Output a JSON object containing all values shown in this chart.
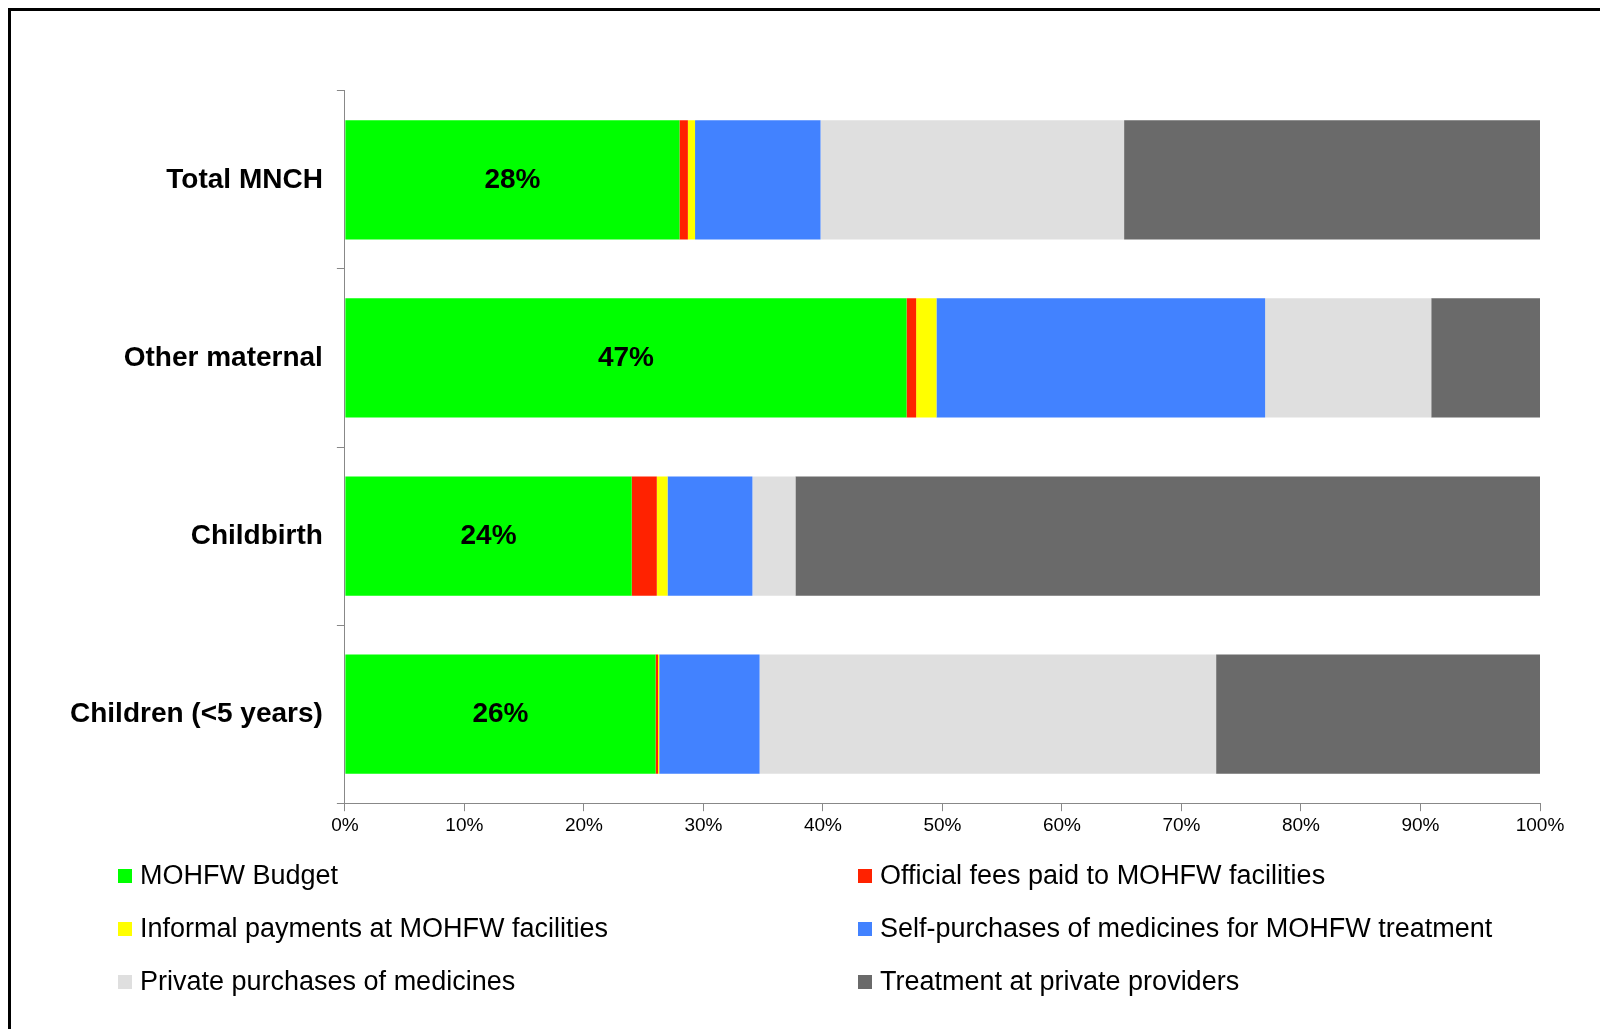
{
  "chart_data": {
    "type": "bar",
    "orientation": "horizontal",
    "stacked": true,
    "categories": [
      "Total MNCH",
      "Other maternal",
      "Childbirth",
      "Children (<5 years)"
    ],
    "series": [
      {
        "name": "MOHFW Budget",
        "color": "#00ff00",
        "values": [
          28,
          47,
          24,
          26
        ],
        "value_labels": [
          "28%",
          "47%",
          "24%",
          "26%"
        ]
      },
      {
        "name": "Official fees paid to MOHFW facilities",
        "color": "#ff2200",
        "values": [
          0.7,
          0.8,
          2.1,
          0.2
        ]
      },
      {
        "name": "Informal payments at MOHFW facilities",
        "color": "#ffff00",
        "values": [
          0.6,
          1.7,
          0.9,
          0.1
        ]
      },
      {
        "name": "Self-purchases of medicines for MOHFW treatment",
        "color": "#4282ff",
        "values": [
          10.5,
          27.5,
          7.1,
          8.4
        ]
      },
      {
        "name": "Private purchases of medicines",
        "color": "#dfdfdf",
        "values": [
          25.4,
          13.9,
          3.6,
          38.2
        ]
      },
      {
        "name": "Treatment at private providers",
        "color": "#6a6a6a",
        "values": [
          34.8,
          9.1,
          62.3,
          27.1
        ]
      }
    ],
    "xlim": [
      0,
      100
    ],
    "xticks": [
      {
        "value": 0,
        "label": "0%"
      },
      {
        "value": 10,
        "label": "10%"
      },
      {
        "value": 20,
        "label": "20%"
      },
      {
        "value": 30,
        "label": "30%"
      },
      {
        "value": 40,
        "label": "40%"
      },
      {
        "value": 50,
        "label": "50%"
      },
      {
        "value": 60,
        "label": "60%"
      },
      {
        "value": 70,
        "label": "70%"
      },
      {
        "value": 80,
        "label": "80%"
      },
      {
        "value": 90,
        "label": "90%"
      },
      {
        "value": 100,
        "label": "100%"
      }
    ],
    "grid": false,
    "legend": "bottom"
  }
}
